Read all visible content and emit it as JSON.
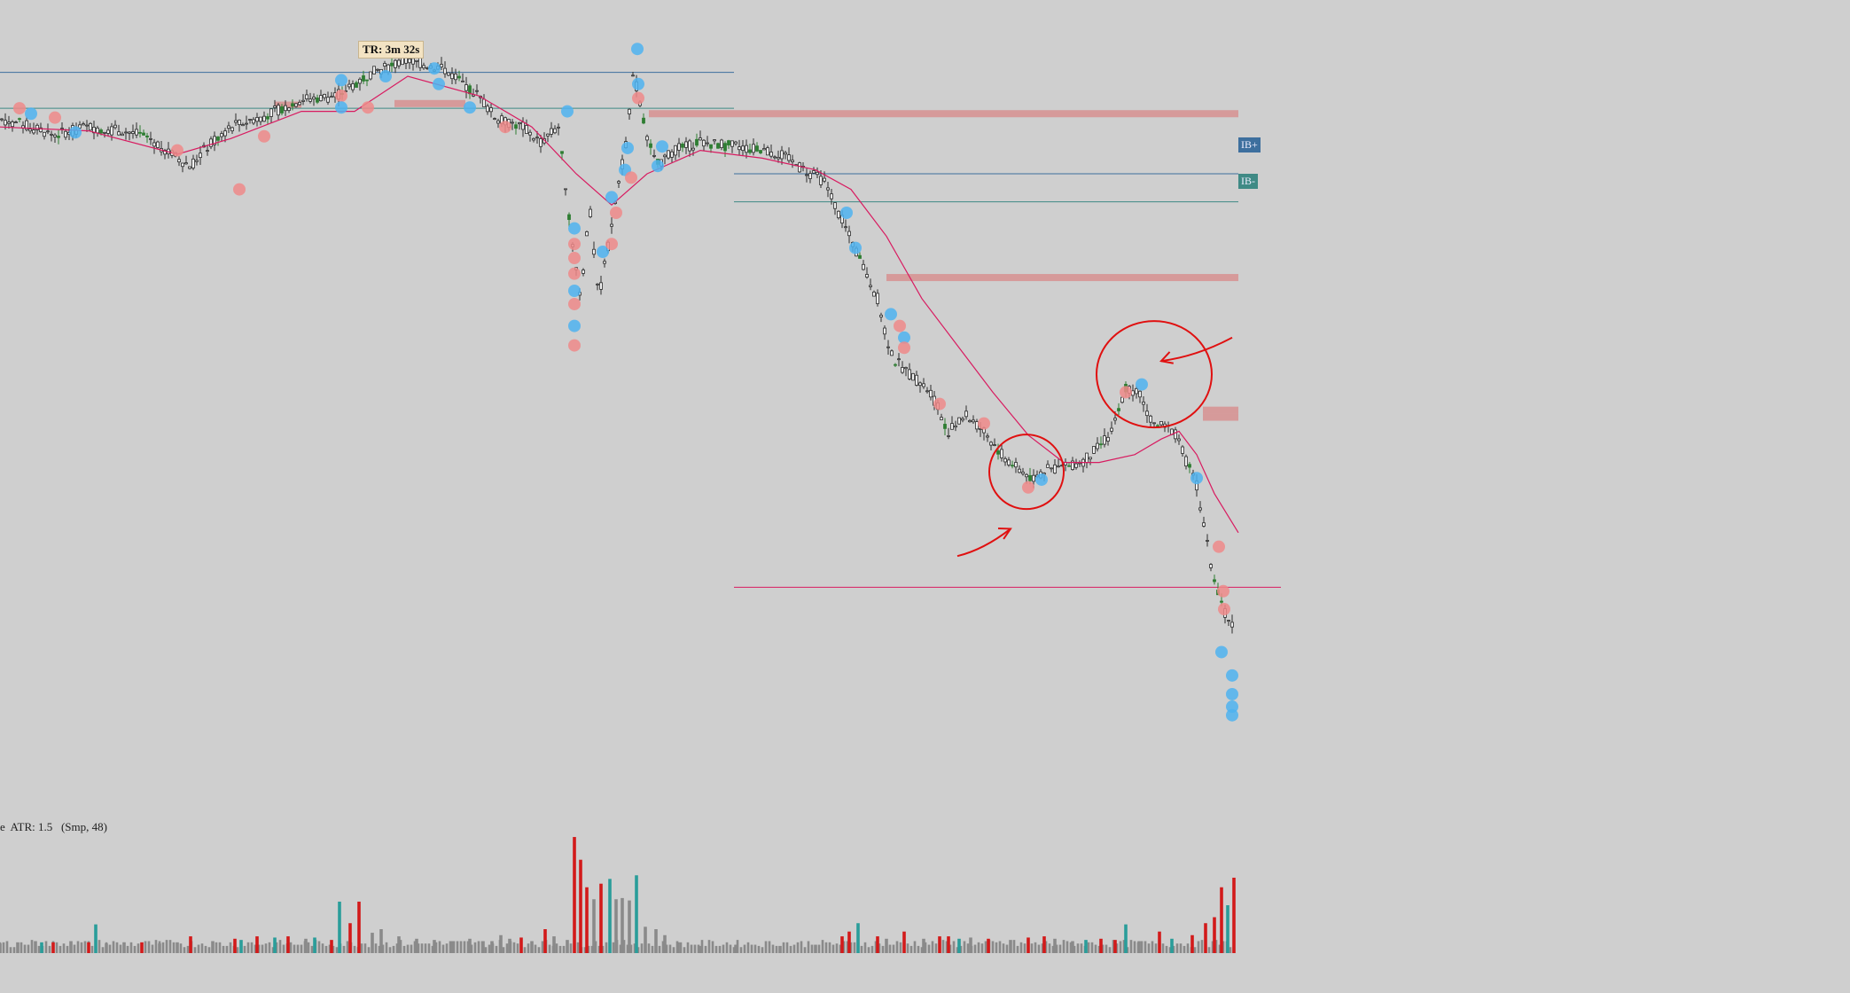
{
  "timer_label": "TR: 3m 32s",
  "level_tags": {
    "ib_plus": "IB+",
    "ib_minus": "IB-"
  },
  "indicator_label": "e  ATR: 1.5   (Smp, 48)",
  "colors": {
    "background": "#cfcfcf",
    "candle": "#2b2b2b",
    "bull_candle": "#2e7d32",
    "moving_average": "#d81b60",
    "dot_blue": "#4fb3f0",
    "dot_red": "#ef8a8a",
    "zone": "#d88888",
    "ib_plus_line": "#3d6f9e",
    "ib_minus_line": "#3f8a85",
    "volume_up": "#2a9d9a",
    "volume_down": "#d21a1a",
    "volume_neutral": "#8a8a8a",
    "annotation": "#e01010"
  },
  "chart_data": {
    "type": "candlestick",
    "title": "",
    "xlabel": "",
    "ylabel": "",
    "ylim": [
      0,
      1000
    ],
    "price_path": [
      [
        0,
        870
      ],
      [
        20,
        865
      ],
      [
        60,
        850
      ],
      [
        100,
        860
      ],
      [
        140,
        855
      ],
      [
        170,
        845
      ],
      [
        200,
        820
      ],
      [
        215,
        810
      ],
      [
        230,
        830
      ],
      [
        260,
        860
      ],
      [
        300,
        875
      ],
      [
        340,
        895
      ],
      [
        380,
        900
      ],
      [
        420,
        930
      ],
      [
        460,
        945
      ],
      [
        500,
        935
      ],
      [
        540,
        900
      ],
      [
        560,
        870
      ],
      [
        590,
        860
      ],
      [
        610,
        840
      ],
      [
        630,
        860
      ],
      [
        645,
        720
      ],
      [
        655,
        640
      ],
      [
        665,
        760
      ],
      [
        675,
        640
      ],
      [
        685,
        700
      ],
      [
        695,
        770
      ],
      [
        705,
        830
      ],
      [
        715,
        930
      ],
      [
        725,
        870
      ],
      [
        740,
        810
      ],
      [
        760,
        830
      ],
      [
        790,
        840
      ],
      [
        830,
        835
      ],
      [
        860,
        830
      ],
      [
        880,
        825
      ],
      [
        900,
        810
      ],
      [
        930,
        790
      ],
      [
        950,
        740
      ],
      [
        970,
        690
      ],
      [
        990,
        640
      ],
      [
        1000,
        590
      ],
      [
        1010,
        560
      ],
      [
        1030,
        540
      ],
      [
        1050,
        520
      ],
      [
        1070,
        470
      ],
      [
        1090,
        490
      ],
      [
        1110,
        470
      ],
      [
        1130,
        440
      ],
      [
        1150,
        420
      ],
      [
        1165,
        410
      ],
      [
        1180,
        420
      ],
      [
        1200,
        425
      ],
      [
        1220,
        430
      ],
      [
        1240,
        450
      ],
      [
        1255,
        470
      ],
      [
        1270,
        525
      ],
      [
        1285,
        520
      ],
      [
        1300,
        480
      ],
      [
        1315,
        475
      ],
      [
        1325,
        470
      ],
      [
        1335,
        440
      ],
      [
        1350,
        400
      ],
      [
        1365,
        305
      ],
      [
        1380,
        240
      ],
      [
        1392,
        220
      ]
    ],
    "moving_average": [
      [
        0,
        860
      ],
      [
        100,
        855
      ],
      [
        200,
        825
      ],
      [
        260,
        845
      ],
      [
        340,
        880
      ],
      [
        400,
        880
      ],
      [
        460,
        925
      ],
      [
        540,
        900
      ],
      [
        600,
        860
      ],
      [
        650,
        800
      ],
      [
        690,
        760
      ],
      [
        730,
        800
      ],
      [
        790,
        830
      ],
      [
        860,
        820
      ],
      [
        920,
        805
      ],
      [
        960,
        780
      ],
      [
        1000,
        720
      ],
      [
        1040,
        640
      ],
      [
        1080,
        580
      ],
      [
        1120,
        520
      ],
      [
        1160,
        465
      ],
      [
        1200,
        430
      ],
      [
        1240,
        430
      ],
      [
        1280,
        440
      ],
      [
        1310,
        460
      ],
      [
        1330,
        470
      ],
      [
        1350,
        440
      ],
      [
        1370,
        390
      ],
      [
        1397,
        340
      ]
    ],
    "lines": [
      {
        "name": "IB+",
        "y": 800,
        "x_range": [
          828,
          1397
        ],
        "color_key": "ib_plus_line"
      },
      {
        "name": "IB-",
        "y": 764,
        "x_range": [
          828,
          1397
        ],
        "color_key": "ib_minus_line"
      },
      {
        "y": 930,
        "x_range": [
          0,
          828
        ],
        "color_key": "ib_plus_line"
      },
      {
        "y": 884,
        "x_range": [
          0,
          828
        ],
        "color_key": "ib_minus_line"
      },
      {
        "y": 270,
        "x_range": [
          828,
          1445
        ],
        "color_key": "moving_average"
      }
    ],
    "zones": [
      {
        "y": 877,
        "x_range": [
          732,
          1397
        ]
      },
      {
        "y": 667,
        "x_range": [
          1000,
          1397
        ]
      },
      {
        "y": 497,
        "x_range": [
          1357,
          1397
        ]
      },
      {
        "y": 488,
        "x_range": [
          1357,
          1397
        ]
      },
      {
        "y": 888,
        "x_range": [
          310,
          340
        ]
      },
      {
        "y": 890,
        "x_range": [
          445,
          525
        ]
      }
    ],
    "dots": [
      {
        "x": 22,
        "y": 884,
        "c": "red"
      },
      {
        "x": 35,
        "y": 877,
        "c": "blue"
      },
      {
        "x": 62,
        "y": 872,
        "c": "red"
      },
      {
        "x": 85,
        "y": 853,
        "c": "blue"
      },
      {
        "x": 200,
        "y": 830,
        "c": "red"
      },
      {
        "x": 270,
        "y": 780,
        "c": "red"
      },
      {
        "x": 298,
        "y": 848,
        "c": "red"
      },
      {
        "x": 385,
        "y": 920,
        "c": "blue"
      },
      {
        "x": 385,
        "y": 900,
        "c": "red"
      },
      {
        "x": 385,
        "y": 885,
        "c": "blue"
      },
      {
        "x": 415,
        "y": 885,
        "c": "red"
      },
      {
        "x": 435,
        "y": 925,
        "c": "blue"
      },
      {
        "x": 490,
        "y": 935,
        "c": "blue"
      },
      {
        "x": 495,
        "y": 915,
        "c": "blue"
      },
      {
        "x": 530,
        "y": 885,
        "c": "blue"
      },
      {
        "x": 570,
        "y": 860,
        "c": "red"
      },
      {
        "x": 640,
        "y": 880,
        "c": "blue"
      },
      {
        "x": 648,
        "y": 730,
        "c": "blue"
      },
      {
        "x": 648,
        "y": 710,
        "c": "red"
      },
      {
        "x": 648,
        "y": 692,
        "c": "red"
      },
      {
        "x": 648,
        "y": 672,
        "c": "red"
      },
      {
        "x": 648,
        "y": 650,
        "c": "blue"
      },
      {
        "x": 648,
        "y": 633,
        "c": "red"
      },
      {
        "x": 648,
        "y": 605,
        "c": "blue"
      },
      {
        "x": 648,
        "y": 580,
        "c": "red"
      },
      {
        "x": 680,
        "y": 700,
        "c": "blue"
      },
      {
        "x": 690,
        "y": 710,
        "c": "red"
      },
      {
        "x": 695,
        "y": 750,
        "c": "red"
      },
      {
        "x": 690,
        "y": 770,
        "c": "blue"
      },
      {
        "x": 705,
        "y": 805,
        "c": "blue"
      },
      {
        "x": 712,
        "y": 795,
        "c": "red"
      },
      {
        "x": 708,
        "y": 833,
        "c": "blue"
      },
      {
        "x": 719,
        "y": 960,
        "c": "blue"
      },
      {
        "x": 720,
        "y": 915,
        "c": "blue"
      },
      {
        "x": 720,
        "y": 897,
        "c": "red"
      },
      {
        "x": 742,
        "y": 810,
        "c": "blue"
      },
      {
        "x": 747,
        "y": 835,
        "c": "blue"
      },
      {
        "x": 955,
        "y": 750,
        "c": "blue"
      },
      {
        "x": 965,
        "y": 705,
        "c": "blue"
      },
      {
        "x": 1005,
        "y": 620,
        "c": "blue"
      },
      {
        "x": 1015,
        "y": 605,
        "c": "red"
      },
      {
        "x": 1020,
        "y": 590,
        "c": "blue"
      },
      {
        "x": 1020,
        "y": 577,
        "c": "red"
      },
      {
        "x": 1060,
        "y": 505,
        "c": "red"
      },
      {
        "x": 1110,
        "y": 480,
        "c": "red"
      },
      {
        "x": 1160,
        "y": 398,
        "c": "red"
      },
      {
        "x": 1175,
        "y": 408,
        "c": "blue"
      },
      {
        "x": 1270,
        "y": 520,
        "c": "red"
      },
      {
        "x": 1288,
        "y": 530,
        "c": "blue"
      },
      {
        "x": 1350,
        "y": 410,
        "c": "blue"
      },
      {
        "x": 1375,
        "y": 322,
        "c": "red"
      },
      {
        "x": 1380,
        "y": 265,
        "c": "red"
      },
      {
        "x": 1381,
        "y": 242,
        "c": "red"
      },
      {
        "x": 1378,
        "y": 187,
        "c": "blue"
      },
      {
        "x": 1390,
        "y": 157,
        "c": "blue"
      },
      {
        "x": 1390,
        "y": 133,
        "c": "blue"
      },
      {
        "x": 1390,
        "y": 117,
        "c": "blue"
      },
      {
        "x": 1390,
        "y": 106,
        "c": "blue"
      }
    ],
    "volume": {
      "ylim": [
        0,
        100
      ],
      "bars": [
        [
          0,
          8,
          "n"
        ],
        [
          20,
          9,
          "n"
        ],
        [
          40,
          10,
          "n"
        ],
        [
          47,
          9,
          "u"
        ],
        [
          60,
          9,
          "d"
        ],
        [
          80,
          10,
          "n"
        ],
        [
          100,
          9,
          "d"
        ],
        [
          108,
          24,
          "u"
        ],
        [
          120,
          8,
          "n"
        ],
        [
          140,
          9,
          "n"
        ],
        [
          160,
          9,
          "d"
        ],
        [
          180,
          8,
          "n"
        ],
        [
          200,
          9,
          "n"
        ],
        [
          215,
          14,
          "d"
        ],
        [
          240,
          10,
          "n"
        ],
        [
          265,
          12,
          "d"
        ],
        [
          272,
          11,
          "u"
        ],
        [
          290,
          14,
          "d"
        ],
        [
          310,
          13,
          "u"
        ],
        [
          325,
          14,
          "d"
        ],
        [
          345,
          12,
          "n"
        ],
        [
          355,
          13,
          "u"
        ],
        [
          374,
          11,
          "d"
        ],
        [
          383,
          43,
          "u"
        ],
        [
          395,
          25,
          "d"
        ],
        [
          405,
          43,
          "d"
        ],
        [
          420,
          17,
          "n"
        ],
        [
          430,
          20,
          "n"
        ],
        [
          450,
          14,
          "n"
        ],
        [
          470,
          12,
          "n"
        ],
        [
          490,
          11,
          "n"
        ],
        [
          510,
          10,
          "n"
        ],
        [
          530,
          12,
          "n"
        ],
        [
          545,
          10,
          "n"
        ],
        [
          555,
          10,
          "n"
        ],
        [
          565,
          15,
          "n"
        ],
        [
          575,
          12,
          "n"
        ],
        [
          588,
          13,
          "d"
        ],
        [
          600,
          10,
          "n"
        ],
        [
          615,
          20,
          "d"
        ],
        [
          625,
          14,
          "n"
        ],
        [
          640,
          11,
          "n"
        ],
        [
          648,
          97,
          "d"
        ],
        [
          655,
          78,
          "d"
        ],
        [
          662,
          55,
          "d"
        ],
        [
          670,
          45,
          "n"
        ],
        [
          678,
          58,
          "d"
        ],
        [
          688,
          62,
          "u"
        ],
        [
          695,
          45,
          "n"
        ],
        [
          702,
          46,
          "n"
        ],
        [
          710,
          44,
          "n"
        ],
        [
          718,
          65,
          "u"
        ],
        [
          728,
          22,
          "n"
        ],
        [
          740,
          20,
          "n"
        ],
        [
          750,
          15,
          "n"
        ],
        [
          765,
          9,
          "n"
        ],
        [
          790,
          6,
          "n"
        ],
        [
          830,
          7,
          "n"
        ],
        [
          880,
          6,
          "n"
        ],
        [
          920,
          7,
          "n"
        ],
        [
          950,
          14,
          "d"
        ],
        [
          958,
          18,
          "d"
        ],
        [
          968,
          25,
          "u"
        ],
        [
          990,
          14,
          "d"
        ],
        [
          1000,
          12,
          "n"
        ],
        [
          1020,
          18,
          "d"
        ],
        [
          1042,
          12,
          "n"
        ],
        [
          1060,
          14,
          "d"
        ],
        [
          1070,
          14,
          "d"
        ],
        [
          1082,
          12,
          "u"
        ],
        [
          1095,
          13,
          "n"
        ],
        [
          1115,
          12,
          "d"
        ],
        [
          1140,
          11,
          "n"
        ],
        [
          1160,
          13,
          "d"
        ],
        [
          1178,
          14,
          "d"
        ],
        [
          1190,
          12,
          "n"
        ],
        [
          1210,
          10,
          "n"
        ],
        [
          1225,
          11,
          "u"
        ],
        [
          1242,
          12,
          "d"
        ],
        [
          1258,
          11,
          "d"
        ],
        [
          1270,
          24,
          "u"
        ],
        [
          1285,
          10,
          "n"
        ],
        [
          1308,
          18,
          "d"
        ],
        [
          1322,
          12,
          "u"
        ],
        [
          1345,
          15,
          "d"
        ],
        [
          1360,
          25,
          "d"
        ],
        [
          1370,
          30,
          "d"
        ],
        [
          1378,
          55,
          "d"
        ],
        [
          1385,
          40,
          "u"
        ],
        [
          1392,
          63,
          "d"
        ]
      ]
    },
    "annotations": [
      {
        "type": "circle",
        "cx": 1158,
        "cy": 418,
        "rx": 42,
        "ry": 42
      },
      {
        "type": "circle",
        "cx": 1302,
        "cy": 543,
        "rx": 65,
        "ry": 60
      },
      {
        "type": "arrow",
        "from": [
          1080,
          310
        ],
        "to": [
          1140,
          345
        ]
      },
      {
        "type": "arrow",
        "from": [
          1390,
          590
        ],
        "to": [
          1310,
          560
        ]
      }
    ]
  }
}
